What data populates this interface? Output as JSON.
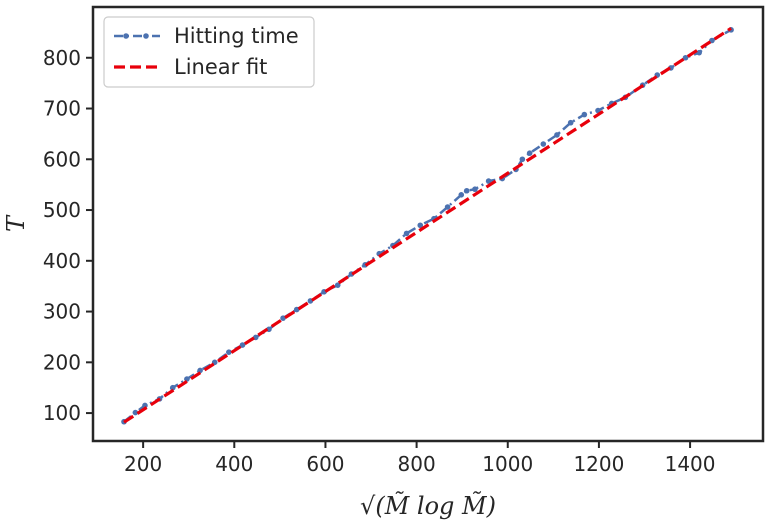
{
  "chart_data": {
    "type": "line",
    "xlabel": "√(M̃ log M̃)",
    "ylabel": "T",
    "xlim": [
      90,
      1560
    ],
    "ylim": [
      45,
      900
    ],
    "x_ticks": [
      200,
      400,
      600,
      800,
      1000,
      1200,
      1400
    ],
    "y_ticks": [
      100,
      200,
      300,
      400,
      500,
      600,
      700,
      800
    ],
    "grid": false,
    "legend_position": "upper-left",
    "series": [
      {
        "name": "Hitting time",
        "style": "dash-dot with dot markers",
        "color": "#4c72b0",
        "x": [
          158,
          183,
          204,
          236,
          265,
          296,
          325,
          357,
          388,
          418,
          447,
          476,
          507,
          537,
          567,
          597,
          627,
          657,
          687,
          718,
          748,
          778,
          808,
          838,
          868,
          898,
          910,
          928,
          958,
          988,
          1018,
          1032,
          1048,
          1078,
          1108,
          1138,
          1168,
          1198,
          1228,
          1258,
          1296,
          1328,
          1358,
          1390,
          1420,
          1448,
          1490
        ],
        "y": [
          83,
          101,
          115,
          128,
          150,
          167,
          184,
          200,
          220,
          234,
          249,
          265,
          287,
          304,
          321,
          339,
          352,
          374,
          392,
          414,
          430,
          454,
          470,
          483,
          506,
          530,
          538,
          541,
          557,
          562,
          580,
          600,
          612,
          630,
          648,
          672,
          688,
          696,
          710,
          722,
          746,
          766,
          780,
          800,
          810,
          834,
          855
        ]
      },
      {
        "name": "Linear fit",
        "style": "dashed",
        "color": "#e8000b",
        "x": [
          158,
          1490
        ],
        "y": [
          82,
          858
        ]
      }
    ]
  }
}
